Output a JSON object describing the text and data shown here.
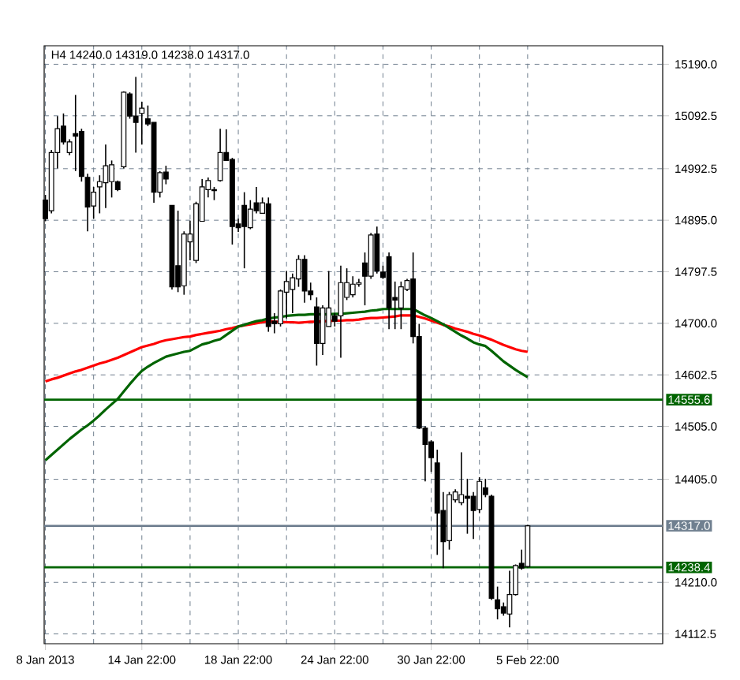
{
  "chart_data": {
    "type": "candlestick",
    "title": "H4 14240.0 14319.0 14238.0 14317.0",
    "categories": [
      "8 Jan 2013",
      null,
      null,
      null,
      null,
      null,
      null,
      null,
      null,
      null,
      null,
      null,
      null,
      null,
      null,
      null,
      "14 Jan 22:00",
      null,
      null,
      null,
      null,
      null,
      null,
      null,
      null,
      null,
      null,
      null,
      null,
      null,
      null,
      null,
      "18 Jan 22:00",
      null,
      null,
      null,
      null,
      null,
      null,
      null,
      null,
      null,
      null,
      null,
      null,
      null,
      null,
      null,
      "24 Jan 22:00",
      null,
      null,
      null,
      null,
      null,
      null,
      null,
      null,
      null,
      null,
      null,
      null,
      null,
      null,
      null,
      "30 Jan 22:00",
      null,
      null,
      null,
      null,
      null,
      null,
      null,
      null,
      null,
      null,
      null,
      null,
      null,
      null,
      null,
      "5 Feb 22:00"
    ],
    "ohlc": [
      [
        14933,
        14943,
        14893,
        14898
      ],
      [
        14913,
        15028,
        14908,
        15023
      ],
      [
        15023,
        15092,
        14993,
        15068
      ],
      [
        15073,
        15097,
        15038,
        15043
      ],
      [
        15023,
        15048,
        15018,
        15043
      ],
      [
        15059,
        15132,
        14988,
        15054
      ],
      [
        15063,
        15068,
        14968,
        14978
      ],
      [
        14976,
        14983,
        14874,
        14920
      ],
      [
        14922,
        14958,
        14898,
        14948
      ],
      [
        14958,
        14980,
        14908,
        14968
      ],
      [
        14966,
        15038,
        14918,
        14998
      ],
      [
        14968,
        15008,
        14938,
        15000
      ],
      [
        14968,
        14970,
        14950,
        14953
      ],
      [
        14996,
        15139,
        14993,
        15137
      ],
      [
        15134,
        15137,
        15087,
        15092
      ],
      [
        15092,
        15166,
        15023,
        15080
      ],
      [
        15097,
        15119,
        15038,
        15107
      ],
      [
        15087,
        15112,
        15073,
        15077
      ],
      [
        15080,
        15080,
        14928,
        14948
      ],
      [
        14948,
        14988,
        14938,
        14985
      ],
      [
        14986,
        14998,
        14963,
        14973
      ],
      [
        14923,
        14923,
        14764,
        14769
      ],
      [
        14809,
        14913,
        14759,
        14769
      ],
      [
        14771,
        14874,
        14754,
        14869
      ],
      [
        14854,
        14894,
        14819,
        14869
      ],
      [
        14819,
        14930,
        14814,
        14926
      ],
      [
        14893,
        14973,
        14893,
        14958
      ],
      [
        14953,
        14976,
        14938,
        14970
      ],
      [
        14951,
        14958,
        14933,
        14953
      ],
      [
        14970,
        15068,
        14968,
        15023
      ],
      [
        15023,
        15067,
        15008,
        15008
      ],
      [
        15010,
        15013,
        14849,
        14883
      ],
      [
        14888,
        14898,
        14873,
        14881
      ],
      [
        14923,
        14948,
        14804,
        14883
      ],
      [
        14881,
        14933,
        14878,
        14916
      ],
      [
        14928,
        14958,
        14908,
        14913
      ],
      [
        14908,
        14938,
        14908,
        14928
      ],
      [
        14926,
        14938,
        14684,
        14694
      ],
      [
        14704,
        14719,
        14681,
        14699
      ],
      [
        14699,
        14764,
        14694,
        14761
      ],
      [
        14759,
        14799,
        14709,
        14779
      ],
      [
        14764,
        14794,
        14719,
        14786
      ],
      [
        14784,
        14829,
        14769,
        14821
      ],
      [
        14821,
        14829,
        14739,
        14761
      ],
      [
        14761,
        14777,
        14744,
        14754
      ],
      [
        14731,
        14749,
        14620,
        14662
      ],
      [
        14662,
        14734,
        14640,
        14729
      ],
      [
        14694,
        14799,
        14694,
        14729
      ],
      [
        14714,
        14719,
        14694,
        14704
      ],
      [
        14714,
        14809,
        14635,
        14777
      ],
      [
        14749,
        14804,
        14744,
        14777
      ],
      [
        14754,
        14789,
        14749,
        14774
      ],
      [
        14774,
        14784,
        14769,
        14777
      ],
      [
        14814,
        14834,
        14734,
        14789
      ],
      [
        14789,
        14871,
        14784,
        14867
      ],
      [
        14869,
        14883,
        14794,
        14799
      ],
      [
        14797,
        14809,
        14784,
        14787
      ],
      [
        14826,
        14834,
        14689,
        14729
      ],
      [
        14749,
        14779,
        14689,
        14744
      ],
      [
        14729,
        14779,
        14689,
        14769
      ],
      [
        14764,
        14784,
        14761,
        14781
      ],
      [
        14784,
        14834,
        14662,
        14675
      ],
      [
        14675,
        14699,
        14500,
        14502
      ],
      [
        14502,
        14505,
        14401,
        14471
      ],
      [
        14476,
        14479,
        14419,
        14446
      ],
      [
        14436,
        14461,
        14262,
        14341
      ],
      [
        14346,
        14381,
        14237,
        14287
      ],
      [
        14289,
        14381,
        14272,
        14376
      ],
      [
        14366,
        14386,
        14361,
        14381
      ],
      [
        14361,
        14456,
        14356,
        14376
      ],
      [
        14373,
        14406,
        14302,
        14369
      ],
      [
        14373,
        14381,
        14292,
        14346
      ],
      [
        14348,
        14409,
        14341,
        14401
      ],
      [
        14389,
        14406,
        14371,
        14376
      ],
      [
        14373,
        14376,
        14177,
        14180
      ],
      [
        14177,
        14202,
        14140,
        14160
      ],
      [
        14164,
        14172,
        14147,
        14152
      ],
      [
        14150,
        14232,
        14125,
        14187
      ],
      [
        14187,
        14244,
        14185,
        14242
      ],
      [
        14246,
        14272,
        14234,
        14237
      ],
      [
        14240,
        14319,
        14238,
        14317
      ]
    ],
    "series": [
      {
        "type": "line",
        "color": "#ff0000",
        "values": [
          14590,
          14594,
          14597,
          14601,
          14605,
          14609,
          14612,
          14616,
          14620,
          14624,
          14627,
          14631,
          14635,
          14640,
          14645,
          14650,
          14655,
          14658,
          14661,
          14665,
          14668,
          14670,
          14672,
          14674,
          14675,
          14678,
          14680,
          14682,
          14684,
          14686,
          14689,
          14691,
          14694,
          14696,
          14698,
          14700,
          14702,
          14704,
          14703,
          14703,
          14702,
          14702,
          14701,
          14702,
          14703,
          14703,
          14704,
          14704,
          14705,
          14705,
          14706,
          14706,
          14707,
          14709,
          14710,
          14710,
          14711,
          14712,
          14713,
          14715,
          14715,
          14715,
          14712,
          14709,
          14705,
          14701,
          14697,
          14694,
          14690,
          14687,
          14684,
          14680,
          14677,
          14673,
          14669,
          14664,
          14659,
          14655,
          14651,
          14648,
          14646
        ]
      },
      {
        "type": "line",
        "color": "#006400",
        "values": [
          14441,
          14451,
          14461,
          14471,
          14481,
          14490,
          14499,
          14507,
          14516,
          14526,
          14537,
          14547,
          14557,
          14571,
          14585,
          14598,
          14610,
          14618,
          14625,
          14631,
          14637,
          14640,
          14643,
          14646,
          14648,
          14654,
          14660,
          14663,
          14667,
          14670,
          14678,
          14686,
          14694,
          14697,
          14701,
          14704,
          14706,
          14709,
          14711,
          14712,
          14714,
          14715,
          14716,
          14716,
          14717,
          14717,
          14717,
          14717,
          14718,
          14718,
          14719,
          14720,
          14721,
          14722,
          14724,
          14725,
          14727,
          14727,
          14727,
          14727,
          14727,
          14727,
          14721,
          14715,
          14710,
          14704,
          14698,
          14691,
          14684,
          14677,
          14671,
          14664,
          14660,
          14657,
          14648,
          14638,
          14628,
          14620,
          14612,
          14605,
          14598
        ]
      }
    ],
    "ylim": [
      14094,
      15225
    ],
    "yticks": [
      {
        "value": 15190,
        "label": "15190.0"
      },
      15092.5,
      14992.5,
      {
        "value": 14895,
        "label": "14895.0"
      },
      14797.5,
      {
        "value": 14700,
        "label": "14700.0"
      },
      14602.5,
      {
        "value": 14505,
        "label": "14505.0"
      },
      {
        "value": 14405,
        "label": "14405.0"
      },
      {
        "value": 14210,
        "label": "14210.0"
      },
      14112.5
    ],
    "ref_lines": [
      {
        "axis": "y",
        "value": 14555.6,
        "label": "14555.6",
        "color": "#006400"
      },
      {
        "axis": "y",
        "value": 14317.0,
        "label": "14317.0",
        "color": "#708090"
      },
      {
        "axis": "y",
        "value": 14238.4,
        "label": "14238.4",
        "color": "#006400"
      }
    ],
    "grid": true
  }
}
